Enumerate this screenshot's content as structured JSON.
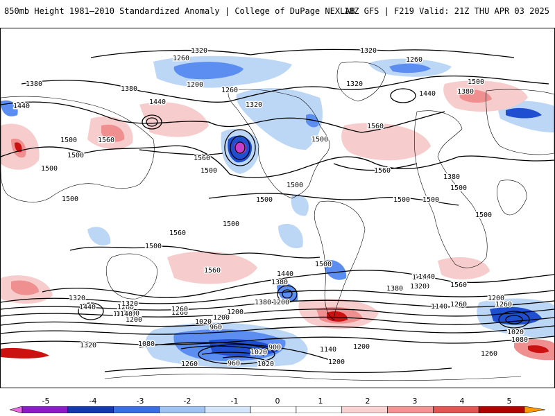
{
  "header": {
    "title": "850mb Height 1981–2010 Standardized Anomaly | College of DuPage NEXLAB",
    "run_info": "18Z GFS | F219 Valid: 21Z THU APR 03 2025"
  },
  "colorbar": {
    "labels": [
      "-5",
      "-4",
      "-3",
      "-2",
      "-1",
      "0",
      "1",
      "2",
      "3",
      "4",
      "5"
    ],
    "colors": [
      "#e56be5",
      "#8a1bcb",
      "#1438b4",
      "#3a6ee8",
      "#9fc3f2",
      "#d6e6fa",
      "#ffffff",
      "#ffffff",
      "#fbd2d2",
      "#f29494",
      "#e65454",
      "#b30000",
      "#ff9900"
    ]
  },
  "contour_labels": [
    "1320",
    "1320",
    "1260",
    "1260",
    "1380",
    "1380",
    "1200",
    "1260",
    "1320",
    "1320",
    "1440",
    "1500",
    "1440",
    "1440",
    "1560",
    "1500",
    "1560",
    "1380",
    "1380",
    "1500",
    "1560",
    "1500",
    "1560",
    "1500",
    "1500",
    "1500",
    "1500",
    "1500",
    "1500",
    "1500",
    "1500",
    "1560",
    "1500",
    "1500",
    "1500",
    "1440",
    "1380",
    "1320",
    "1380",
    "1200",
    "1500",
    "1440",
    "1320",
    "1440",
    "1320",
    "1260",
    "1200",
    "1140",
    "1260",
    "1380",
    "1200",
    "1260",
    "1320",
    "1320",
    "1080",
    "1200",
    "1140",
    "1020",
    "960",
    "1020",
    "1260",
    "900",
    "960",
    "1020",
    "1140",
    "1200",
    "1200",
    "1260",
    "1440",
    "1380",
    "1140",
    "1080",
    "1020",
    "1260",
    "1560",
    "1560",
    "1260",
    "1200"
  ],
  "anomaly_colors": {
    "neg1": "#bcd6f6",
    "neg2": "#5b8ef0",
    "neg3": "#1f4fd0",
    "neg5": "#c83ec8",
    "pos1": "#f7cccc",
    "pos2": "#ef8f8f",
    "pos3": "#cc1111",
    "pos4": "#ffa500"
  }
}
